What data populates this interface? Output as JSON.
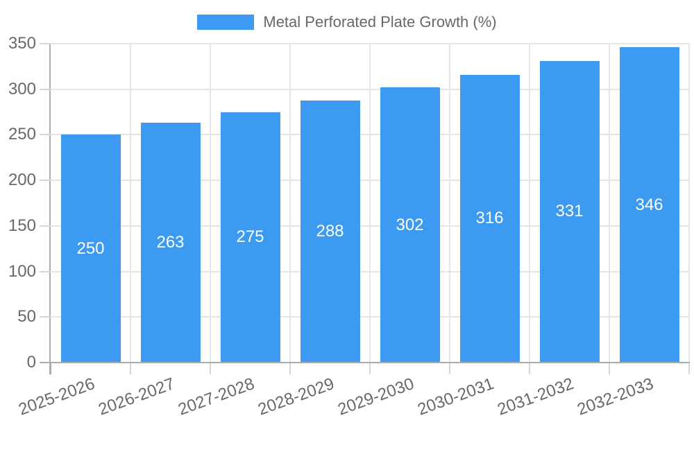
{
  "chart_data": {
    "type": "bar",
    "legend_label": "Metal Perforated Plate Growth (%)",
    "legend_position": "top",
    "categories": [
      "2025-2026",
      "2026-2027",
      "2027-2028",
      "2028-2029",
      "2029-2030",
      "2030-2031",
      "2031-2032",
      "2032-2033"
    ],
    "values": [
      250,
      263,
      275,
      288,
      302,
      316,
      331,
      346
    ],
    "xlabel": "",
    "ylabel": "",
    "ylim": [
      0,
      350
    ],
    "yticks": [
      0,
      50,
      100,
      150,
      200,
      250,
      300,
      350
    ],
    "grid": true,
    "bar_color": "#3c9af0",
    "value_label_color": "#ffffff",
    "axis_text_color": "#686868",
    "grid_color": "#e5e5e5",
    "tick_color": "#d6d6d6",
    "axis_line_color": "#ababab"
  }
}
